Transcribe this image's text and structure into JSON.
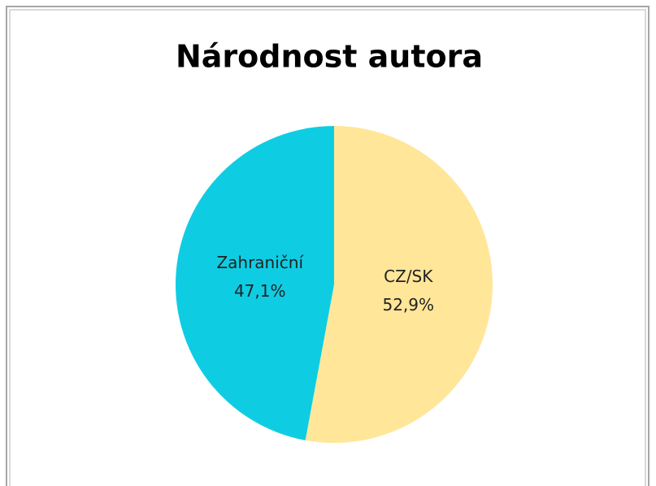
{
  "chart_data": {
    "type": "pie",
    "title": "Národnost autora",
    "categories": [
      "CZ/SK",
      "Zahraniční"
    ],
    "values": [
      52.9,
      47.1
    ],
    "value_labels": [
      "52,9%",
      "47,1%"
    ],
    "colors": [
      "#FFE699",
      "#0ECDE3"
    ]
  }
}
